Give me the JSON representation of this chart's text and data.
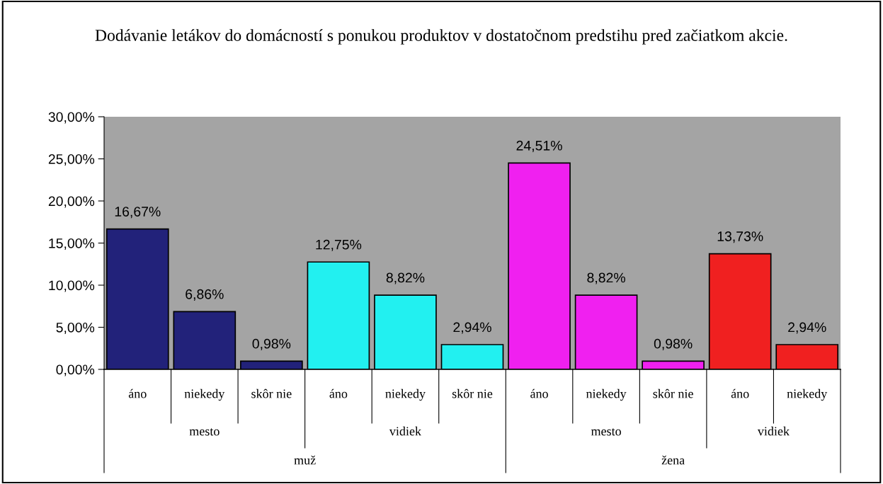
{
  "chart_data": {
    "type": "bar",
    "title": "Dodávanie letákov do domácností s ponukou produktov v dostatočnom predstihu pred začiatkom akcie.",
    "categories": [
      "áno",
      "niekedy",
      "skôr nie",
      "áno",
      "niekedy",
      "skôr nie",
      "áno",
      "niekedy",
      "skôr nie",
      "áno",
      "niekedy"
    ],
    "values": [
      16.67,
      6.86,
      0.98,
      12.75,
      8.82,
      2.94,
      24.51,
      8.82,
      0.98,
      13.73,
      2.94
    ],
    "value_labels": [
      "16,67%",
      "6,86%",
      "0,98%",
      "12,75%",
      "8,82%",
      "2,94%",
      "24,51%",
      "8,82%",
      "0,98%",
      "13,73%",
      "2,94%"
    ],
    "colors": [
      "#22227a",
      "#22227a",
      "#22227a",
      "#22f0f0",
      "#22f0f0",
      "#22f0f0",
      "#f020f0",
      "#f020f0",
      "#f020f0",
      "#f02020",
      "#f02020"
    ],
    "ylim": [
      0,
      30
    ],
    "yticks": [
      {
        "value": 0,
        "label": "0,00%"
      },
      {
        "value": 5,
        "label": "5,00%"
      },
      {
        "value": 10,
        "label": "10,00%"
      },
      {
        "value": 15,
        "label": "15,00%"
      },
      {
        "value": 20,
        "label": "20,00%"
      },
      {
        "value": 25,
        "label": "25,00%"
      },
      {
        "value": 30,
        "label": "30,00%"
      }
    ],
    "annotations": [
      "mesto",
      "vidiek",
      "mesto",
      "vidiek",
      "muž",
      "žena"
    ],
    "grid": false,
    "legend": false
  }
}
